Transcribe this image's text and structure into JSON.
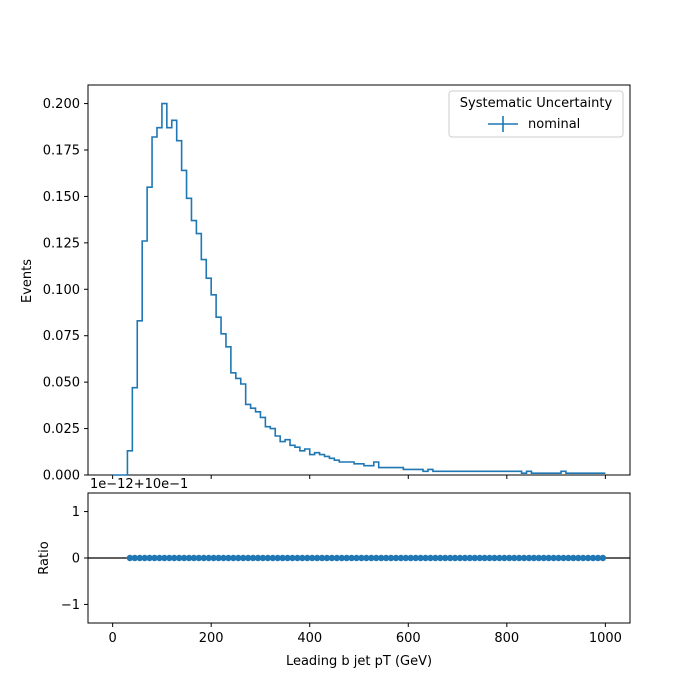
{
  "colors": {
    "series": "#1f77b4",
    "axis": "#000000",
    "background": "#ffffff",
    "legend_border": "#cccccc"
  },
  "chart_data": [
    {
      "type": "histogram-step",
      "ylabel": "Events",
      "xlim": [
        -50,
        1050
      ],
      "ylim": [
        0,
        0.21
      ],
      "xticks": [
        0,
        200,
        400,
        600,
        800,
        1000
      ],
      "xtick_labels_shown": false,
      "yticks": [
        0.0,
        0.025,
        0.05,
        0.075,
        0.1,
        0.125,
        0.15,
        0.175,
        0.2
      ],
      "ytick_labels": [
        "0.000",
        "0.025",
        "0.050",
        "0.075",
        "0.100",
        "0.125",
        "0.150",
        "0.175",
        "0.200"
      ],
      "grid": false,
      "legend": {
        "title": "Systematic Uncertainty",
        "entries": [
          "nominal"
        ],
        "placement": "upper-right"
      },
      "series": [
        {
          "name": "nominal",
          "bin_width": 10,
          "bin_edges_start": 0,
          "values": [
            0.0,
            0.0,
            0.0,
            0.013,
            0.047,
            0.083,
            0.126,
            0.155,
            0.182,
            0.187,
            0.2,
            0.187,
            0.191,
            0.18,
            0.164,
            0.149,
            0.137,
            0.13,
            0.116,
            0.106,
            0.097,
            0.085,
            0.076,
            0.069,
            0.055,
            0.052,
            0.049,
            0.038,
            0.036,
            0.034,
            0.031,
            0.026,
            0.025,
            0.021,
            0.018,
            0.019,
            0.016,
            0.015,
            0.013,
            0.014,
            0.011,
            0.012,
            0.011,
            0.01,
            0.009,
            0.008,
            0.007,
            0.007,
            0.007,
            0.006,
            0.006,
            0.005,
            0.005,
            0.007,
            0.004,
            0.004,
            0.004,
            0.004,
            0.004,
            0.003,
            0.003,
            0.003,
            0.003,
            0.002,
            0.003,
            0.002,
            0.002,
            0.002,
            0.002,
            0.002,
            0.002,
            0.002,
            0.002,
            0.002,
            0.002,
            0.002,
            0.002,
            0.002,
            0.002,
            0.002,
            0.002,
            0.002,
            0.002,
            0.001,
            0.002,
            0.001,
            0.001,
            0.001,
            0.001,
            0.001,
            0.001,
            0.002,
            0.001,
            0.001,
            0.001,
            0.001,
            0.001,
            0.001,
            0.001,
            0.001
          ]
        }
      ]
    },
    {
      "type": "scatter",
      "xlabel": "Leading b jet  pT (GeV)",
      "ylabel": "Ratio",
      "offset_text": "1e−12+10e−1",
      "xlim": [
        -50,
        1050
      ],
      "ylim": [
        -1.4,
        1.4
      ],
      "xticks": [
        0,
        200,
        400,
        600,
        800,
        1000
      ],
      "xtick_labels": [
        "0",
        "200",
        "400",
        "600",
        "800",
        "1000"
      ],
      "yticks": [
        -1,
        0,
        1
      ],
      "ytick_labels": [
        "−1",
        "0",
        "1"
      ],
      "reference_line": 0,
      "grid": false,
      "series": [
        {
          "name": "nominal",
          "x_start": 35,
          "x_step": 10,
          "count": 97,
          "value": 0
        }
      ]
    }
  ]
}
